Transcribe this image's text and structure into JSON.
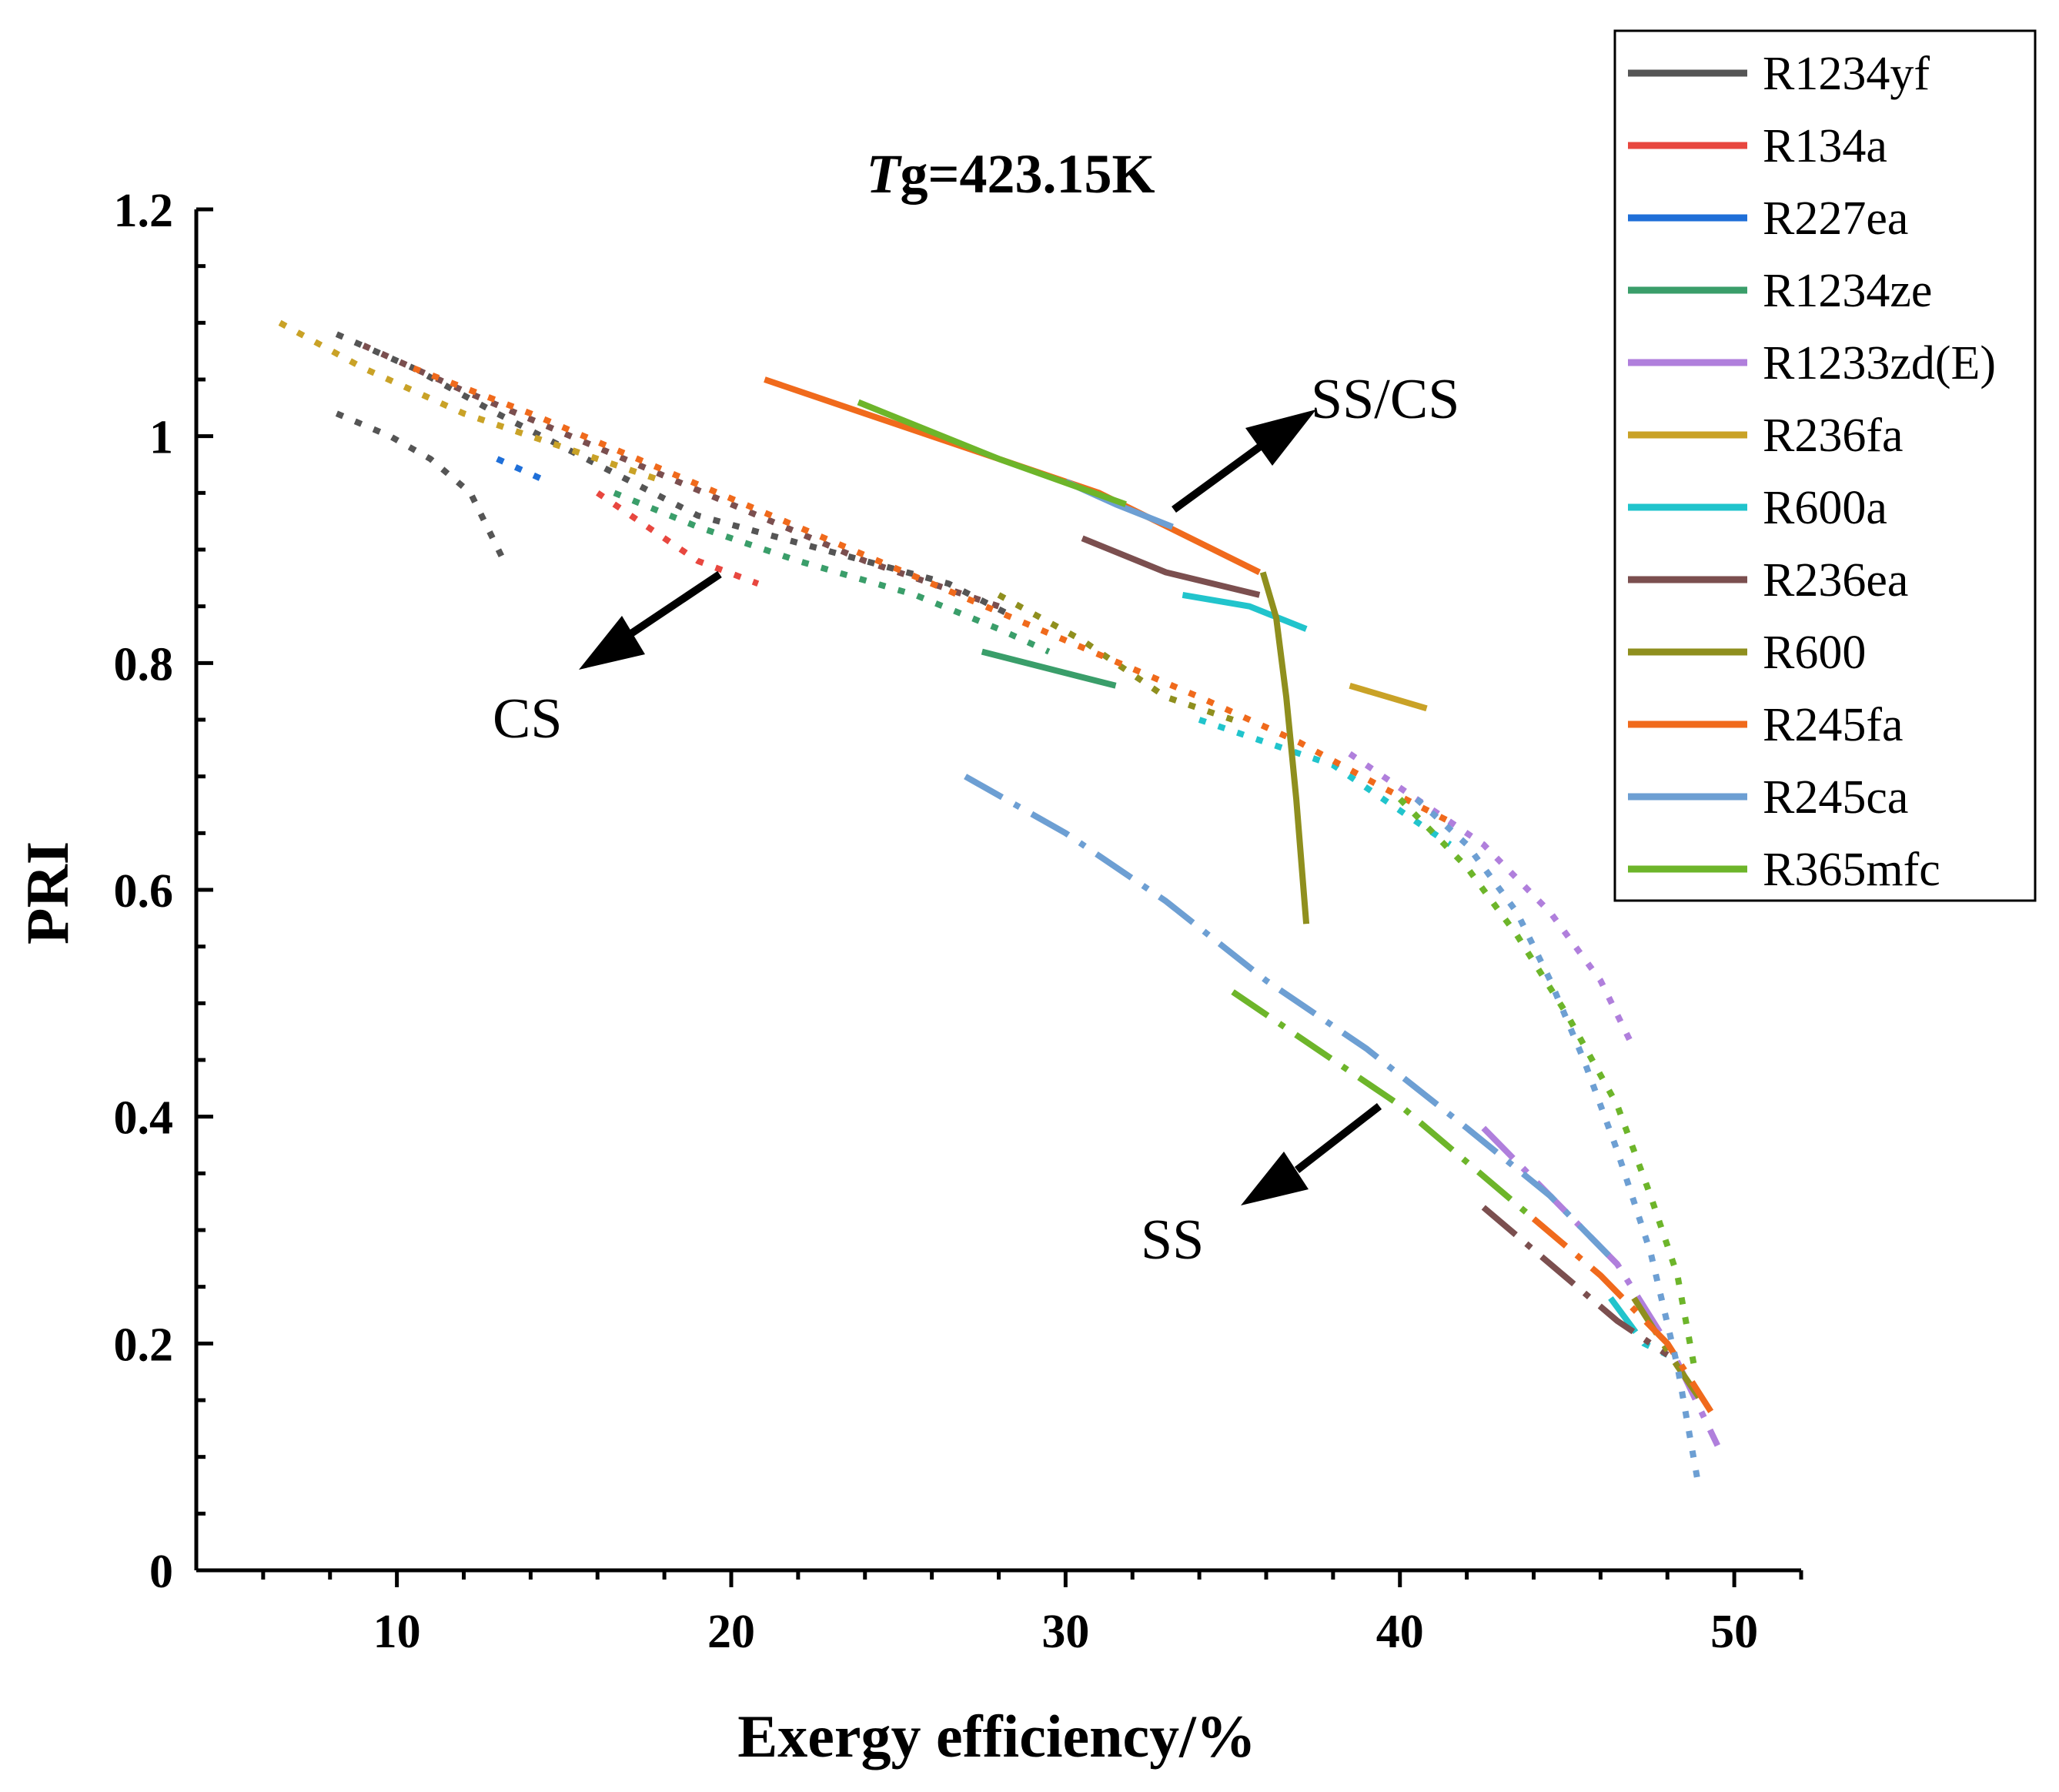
{
  "chart_data": {
    "type": "line",
    "title_italic": "T",
    "title_rest": "g=423.15K",
    "xlabel": "Exergy efficiency/%",
    "ylabel": "PRI",
    "xlim": [
      4,
      52
    ],
    "ylim": [
      0,
      1.2
    ],
    "xticks": [
      10,
      20,
      30,
      40,
      50
    ],
    "yticks": [
      0,
      0.2,
      0.4,
      0.6,
      0.8,
      1,
      1.2
    ],
    "ytick_labels": [
      "0",
      "0.2",
      "0.4",
      "0.6",
      "0.8",
      "1",
      "1.2"
    ],
    "legend_position": "top-right",
    "series": [
      {
        "name": "R1234yf",
        "color": "#555555",
        "segments": [
          {
            "style": "dotted",
            "points": [
              [
                8.2,
                1.09
              ],
              [
                10.5,
                1.06
              ],
              [
                13,
                1.02
              ],
              [
                15,
                0.99
              ],
              [
                17,
                0.96
              ],
              [
                19,
                0.93
              ],
              [
                21.5,
                0.91
              ],
              [
                24,
                0.89
              ],
              [
                26.5,
                0.87
              ],
              [
                28.5,
                0.84
              ]
            ]
          },
          {
            "style": "dotted",
            "points": [
              [
                8.2,
                1.02
              ],
              [
                9.8,
                1.0
              ],
              [
                11,
                0.98
              ],
              [
                12.2,
                0.95
              ],
              [
                13.2,
                0.89
              ]
            ]
          }
        ]
      },
      {
        "name": "R134a",
        "color": "#e8473f",
        "segments": [
          {
            "style": "dotted",
            "points": [
              [
                16,
                0.95
              ],
              [
                17.5,
                0.92
              ],
              [
                19,
                0.89
              ],
              [
                20.8,
                0.87
              ]
            ]
          }
        ]
      },
      {
        "name": "R227ea",
        "color": "#1f6fd8",
        "segments": [
          {
            "style": "dotted",
            "points": [
              [
                13,
                0.98
              ],
              [
                14.5,
                0.96
              ]
            ]
          }
        ]
      },
      {
        "name": "R1234ze",
        "color": "#3a9e6a",
        "segments": [
          {
            "style": "dotted",
            "points": [
              [
                16.5,
                0.95
              ],
              [
                19,
                0.92
              ],
              [
                22,
                0.89
              ],
              [
                25.5,
                0.86
              ],
              [
                28,
                0.83
              ],
              [
                29.5,
                0.81
              ]
            ]
          },
          {
            "style": "solid",
            "points": [
              [
                27.5,
                0.81
              ],
              [
                31.5,
                0.78
              ]
            ]
          }
        ]
      },
      {
        "name": "R1233zd(E)",
        "color": "#b07fdc",
        "segments": [
          {
            "style": "dotted",
            "points": [
              [
                38.5,
                0.72
              ],
              [
                40.5,
                0.68
              ],
              [
                42.5,
                0.64
              ],
              [
                44.5,
                0.58
              ],
              [
                46,
                0.52
              ],
              [
                47,
                0.46
              ]
            ]
          },
          {
            "style": "dashdot",
            "points": [
              [
                42.5,
                0.39
              ],
              [
                44.5,
                0.33
              ],
              [
                46.5,
                0.27
              ],
              [
                48.2,
                0.19
              ],
              [
                49.5,
                0.11
              ]
            ]
          }
        ]
      },
      {
        "name": "R236fa",
        "color": "#c9a227",
        "segments": [
          {
            "style": "dotted",
            "points": [
              [
                6.5,
                1.1
              ],
              [
                9,
                1.06
              ],
              [
                12,
                1.02
              ],
              [
                15,
                0.99
              ],
              [
                18,
                0.96
              ]
            ]
          },
          {
            "style": "solid",
            "points": [
              [
                38.5,
                0.78
              ],
              [
                40.8,
                0.76
              ]
            ]
          }
        ]
      },
      {
        "name": "R600a",
        "color": "#21c4cc",
        "segments": [
          {
            "style": "dotted",
            "points": [
              [
                34,
                0.75
              ],
              [
                36,
                0.73
              ],
              [
                38,
                0.71
              ],
              [
                40,
                0.67
              ],
              [
                41.5,
                0.64
              ]
            ]
          },
          {
            "style": "solid",
            "points": [
              [
                33.5,
                0.86
              ],
              [
                35.5,
                0.85
              ],
              [
                37.2,
                0.83
              ]
            ]
          },
          {
            "style": "dashdot",
            "points": [
              [
                46.3,
                0.24
              ],
              [
                47.3,
                0.2
              ],
              [
                48,
                0.19
              ]
            ]
          }
        ]
      },
      {
        "name": "R236ea",
        "color": "#7b4f4f",
        "segments": [
          {
            "style": "dotted",
            "points": [
              [
                9,
                1.08
              ],
              [
                12,
                1.04
              ],
              [
                16,
                0.99
              ],
              [
                20,
                0.94
              ],
              [
                24,
                0.89
              ],
              [
                28,
                0.85
              ]
            ]
          },
          {
            "style": "solid",
            "points": [
              [
                30.5,
                0.91
              ],
              [
                33,
                0.88
              ],
              [
                35.8,
                0.86
              ]
            ]
          },
          {
            "style": "dashdot",
            "points": [
              [
                42.5,
                0.32
              ],
              [
                44.5,
                0.27
              ],
              [
                46.5,
                0.22
              ],
              [
                48,
                0.19
              ]
            ]
          }
        ]
      },
      {
        "name": "R600",
        "color": "#8f8f1e",
        "segments": [
          {
            "style": "dotted",
            "points": [
              [
                28,
                0.86
              ],
              [
                30.5,
                0.82
              ],
              [
                33,
                0.77
              ],
              [
                35,
                0.75
              ]
            ]
          },
          {
            "style": "solid",
            "points": [
              [
                35.9,
                0.88
              ],
              [
                36.3,
                0.84
              ],
              [
                36.6,
                0.77
              ],
              [
                36.9,
                0.68
              ],
              [
                37.2,
                0.57
              ]
            ]
          },
          {
            "style": "dashdot",
            "points": [
              [
                47,
                0.24
              ],
              [
                48.3,
                0.18
              ],
              [
                49,
                0.15
              ]
            ]
          }
        ]
      },
      {
        "name": "R245fa",
        "color": "#f06a1c",
        "segments": [
          {
            "style": "dotted",
            "points": [
              [
                10.5,
                1.06
              ],
              [
                14,
                1.02
              ],
              [
                18,
                0.97
              ],
              [
                22,
                0.92
              ],
              [
                26,
                0.87
              ],
              [
                30,
                0.82
              ],
              [
                34,
                0.77
              ],
              [
                37,
                0.73
              ],
              [
                39.5,
                0.69
              ],
              [
                41.5,
                0.66
              ]
            ]
          },
          {
            "style": "solid",
            "points": [
              [
                21,
                1.05
              ],
              [
                26,
                1.0
              ],
              [
                31,
                0.95
              ],
              [
                35.8,
                0.88
              ]
            ]
          },
          {
            "style": "dashdot",
            "points": [
              [
                44,
                0.31
              ],
              [
                46,
                0.26
              ],
              [
                48,
                0.2
              ],
              [
                49.3,
                0.14
              ]
            ]
          }
        ]
      },
      {
        "name": "R245ca",
        "color": "#6d9fd3",
        "segments": [
          {
            "style": "dotted",
            "points": [
              [
                40.5,
                0.68
              ],
              [
                42,
                0.64
              ],
              [
                43.5,
                0.58
              ],
              [
                44.5,
                0.52
              ],
              [
                45.5,
                0.45
              ],
              [
                46.5,
                0.37
              ],
              [
                47.5,
                0.28
              ],
              [
                48.3,
                0.18
              ],
              [
                48.9,
                0.08
              ]
            ]
          },
          {
            "style": "solid",
            "points": [
              [
                30,
                0.96
              ],
              [
                31.5,
                0.94
              ],
              [
                33.2,
                0.92
              ]
            ]
          },
          {
            "style": "dashdot",
            "points": [
              [
                27,
                0.7
              ],
              [
                30,
                0.65
              ],
              [
                33,
                0.59
              ],
              [
                36,
                0.52
              ],
              [
                39,
                0.46
              ],
              [
                42,
                0.39
              ],
              [
                44.5,
                0.33
              ],
              [
                46.5,
                0.27
              ]
            ]
          }
        ]
      },
      {
        "name": "R365mfc",
        "color": "#6db52a",
        "segments": [
          {
            "style": "dotted",
            "points": [
              [
                40,
                0.68
              ],
              [
                42,
                0.62
              ],
              [
                43.5,
                0.56
              ],
              [
                45,
                0.49
              ],
              [
                46.5,
                0.41
              ],
              [
                47.5,
                0.33
              ],
              [
                48.3,
                0.26
              ],
              [
                48.8,
                0.18
              ]
            ]
          },
          {
            "style": "solid",
            "points": [
              [
                23.8,
                1.03
              ],
              [
                28,
                0.98
              ],
              [
                31.8,
                0.94
              ]
            ]
          },
          {
            "style": "dashdot",
            "points": [
              [
                35,
                0.51
              ],
              [
                37.5,
                0.46
              ],
              [
                40,
                0.41
              ],
              [
                42,
                0.36
              ],
              [
                44,
                0.31
              ]
            ]
          }
        ]
      }
    ],
    "annotations": [
      {
        "text": "SS/CS"
      },
      {
        "text": "CS"
      },
      {
        "text": "SS"
      }
    ]
  }
}
